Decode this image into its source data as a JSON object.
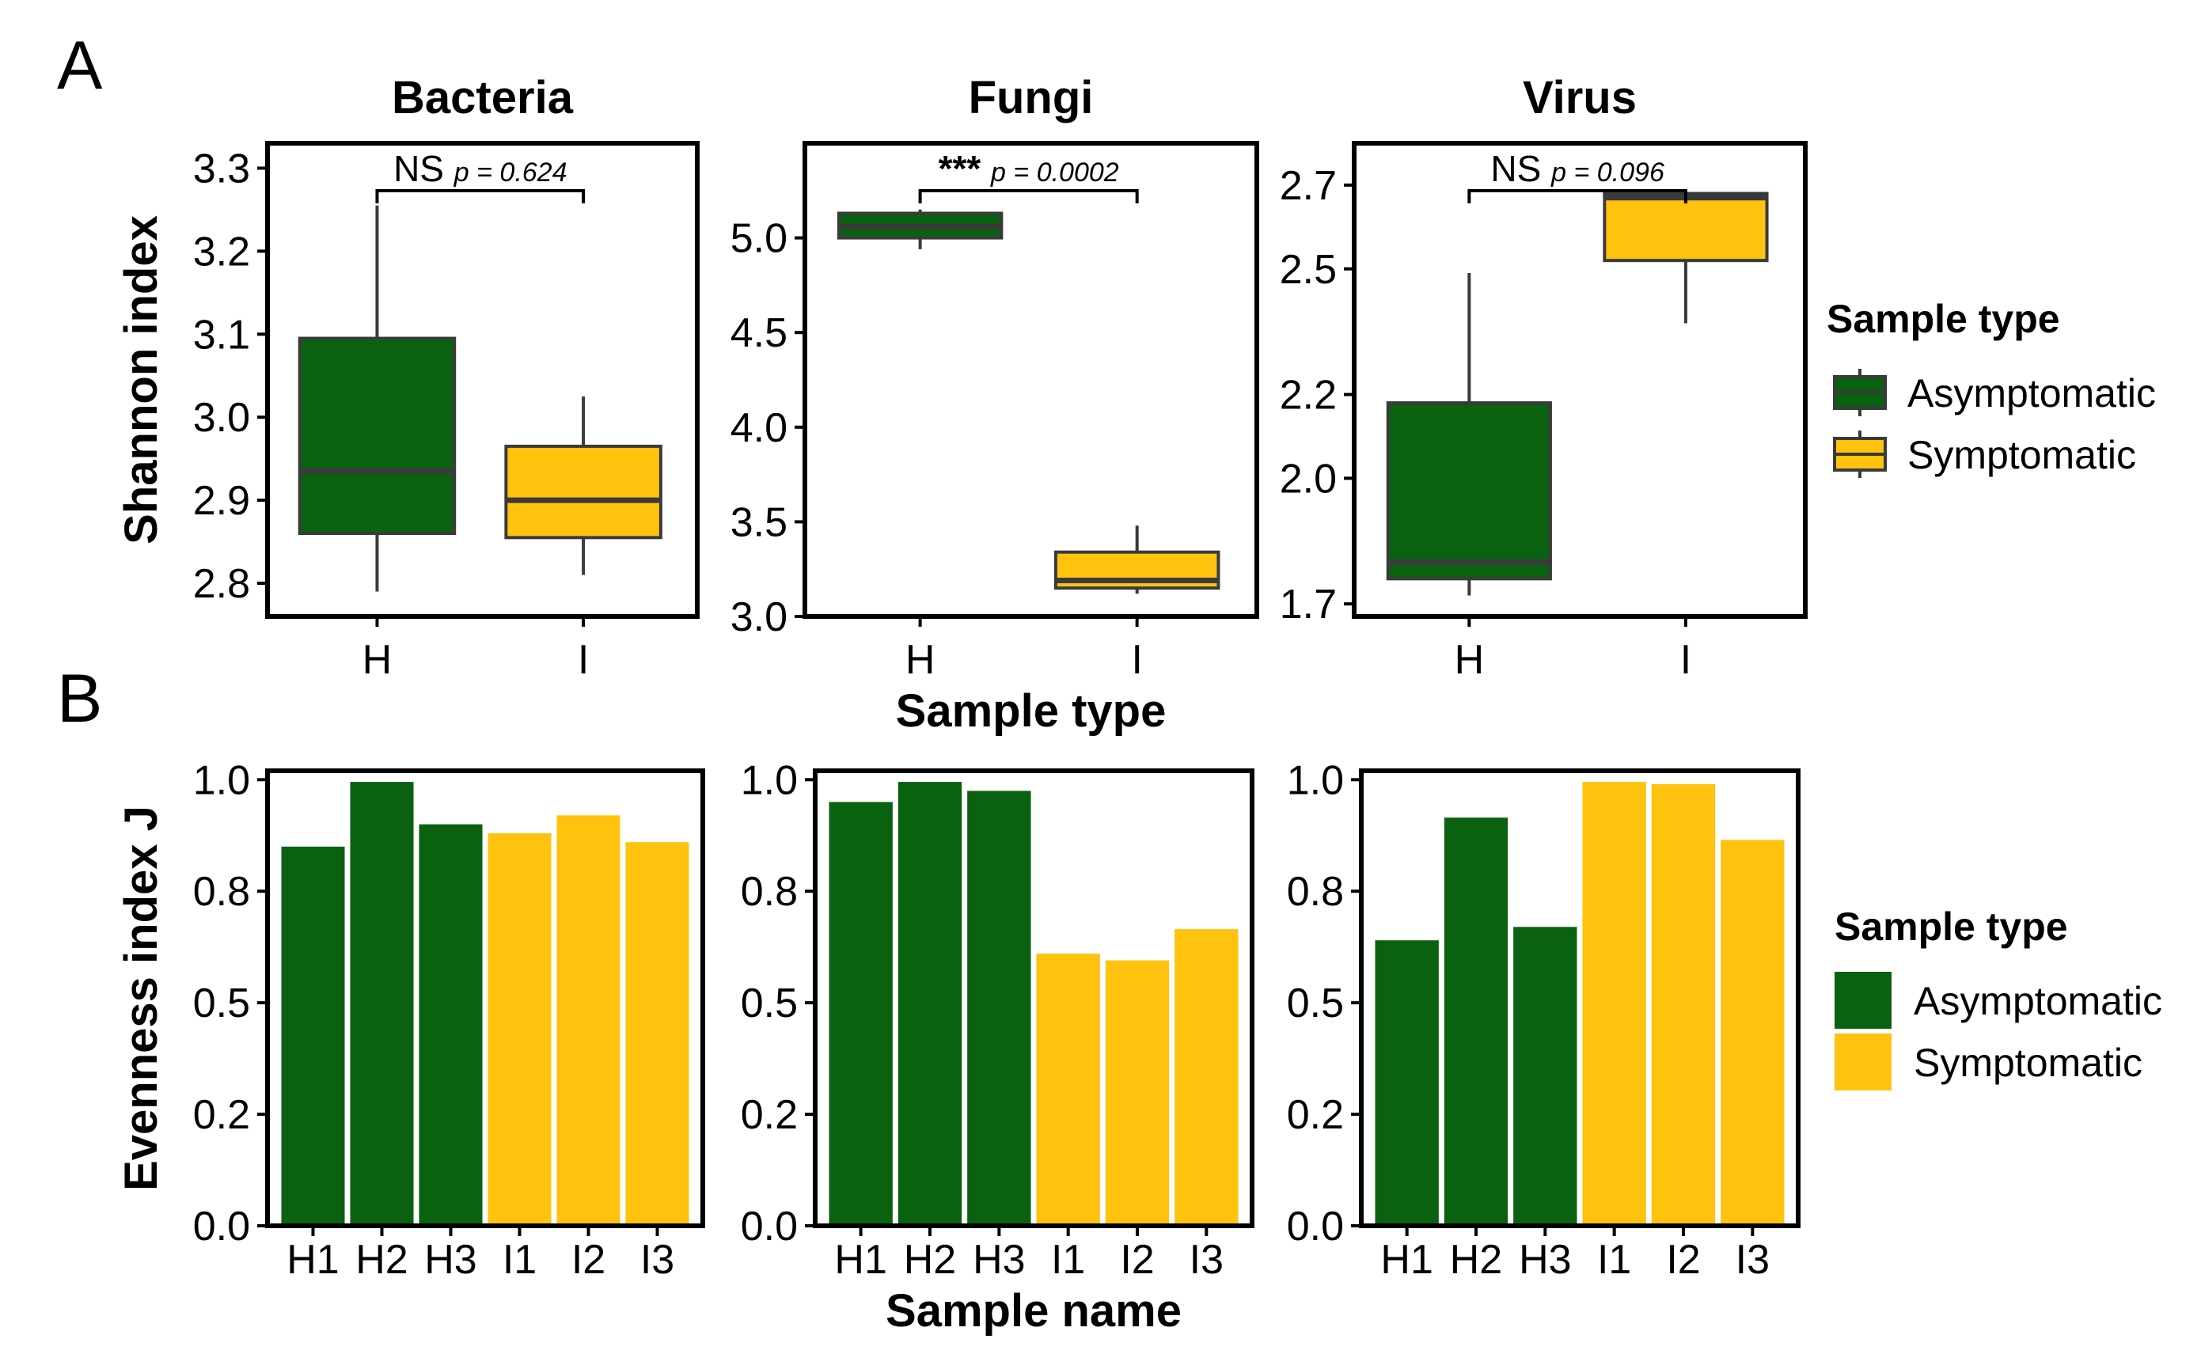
{
  "panels": {
    "a_letter": "A",
    "b_letter": "B"
  },
  "colors": {
    "asymptomatic": "#0a6110",
    "symptomatic": "#fec20f",
    "frame": "#000000",
    "box_edge": "#3a3a3a"
  },
  "chart_data": [
    {
      "type": "box",
      "title": "Bacteria",
      "ylabel": "Shannon index",
      "xlabel": "",
      "ylim": [
        2.76,
        3.33
      ],
      "yticks": [
        2.8,
        2.9,
        3.0,
        3.1,
        3.2,
        3.3
      ],
      "ytick_labels": [
        "2.8",
        "2.9",
        "3.0",
        "3.1",
        "3.2",
        "3.3"
      ],
      "categories": [
        "H",
        "I"
      ],
      "boxes": [
        {
          "group": "H",
          "sample_type": "Asymptomatic",
          "min": 2.79,
          "q1": 2.86,
          "median": 2.935,
          "q3": 3.095,
          "max": 3.255
        },
        {
          "group": "I",
          "sample_type": "Symptomatic",
          "min": 2.81,
          "q1": 2.855,
          "median": 2.9,
          "q3": 2.965,
          "max": 3.025
        }
      ],
      "significance": {
        "label": "NS",
        "p_text": "p = 0.624"
      }
    },
    {
      "type": "box",
      "title": "Fungi",
      "ylabel": "",
      "xlabel": "Sample type",
      "ylim": [
        3.0,
        5.5
      ],
      "yticks": [
        3.0,
        3.5,
        4.0,
        4.5,
        5.0
      ],
      "ytick_labels": [
        "3.0",
        "3.5",
        "4.0",
        "4.5",
        "5.0"
      ],
      "categories": [
        "H",
        "I"
      ],
      "boxes": [
        {
          "group": "H",
          "sample_type": "Asymptomatic",
          "min": 4.94,
          "q1": 5.0,
          "median": 5.06,
          "q3": 5.13,
          "max": 5.15
        },
        {
          "group": "I",
          "sample_type": "Symptomatic",
          "min": 3.12,
          "q1": 3.15,
          "median": 3.19,
          "q3": 3.34,
          "max": 3.48
        }
      ],
      "significance": {
        "label": "***",
        "p_text": "p = 0.0002"
      }
    },
    {
      "type": "box",
      "title": "Virus",
      "ylabel": "",
      "xlabel": "",
      "ylim": [
        1.67,
        2.8
      ],
      "yticks": [
        1.7,
        2.0,
        2.2,
        2.5,
        2.7
      ],
      "ytick_labels": [
        "1.7",
        "2.0",
        "2.2",
        "2.5",
        "2.7"
      ],
      "categories": [
        "H",
        "I"
      ],
      "boxes": [
        {
          "group": "H",
          "sample_type": "Asymptomatic",
          "min": 1.72,
          "q1": 1.76,
          "median": 1.8,
          "q3": 2.18,
          "max": 2.49
        },
        {
          "group": "I",
          "sample_type": "Symptomatic",
          "min": 2.37,
          "q1": 2.52,
          "median": 2.67,
          "q3": 2.68,
          "max": 2.68
        }
      ],
      "significance": {
        "label": "NS",
        "p_text": "p = 0.096"
      }
    },
    {
      "type": "bar",
      "title": "",
      "ylabel": "Evenness index J",
      "xlabel": "",
      "ylim": [
        0,
        1.02
      ],
      "yticks": [
        0,
        0.25,
        0.5,
        0.75,
        1.0
      ],
      "ytick_labels": [
        "0.0",
        "0.2",
        "0.5",
        "0.8",
        "1.0"
      ],
      "categories": [
        "H1",
        "H2",
        "H3",
        "I1",
        "I2",
        "I3"
      ],
      "values": [
        0.85,
        0.995,
        0.9,
        0.88,
        0.92,
        0.86
      ],
      "sample_type": [
        "Asymptomatic",
        "Asymptomatic",
        "Asymptomatic",
        "Symptomatic",
        "Symptomatic",
        "Symptomatic"
      ]
    },
    {
      "type": "bar",
      "title": "",
      "ylabel": "",
      "xlabel": "Sample name",
      "ylim": [
        0,
        1.02
      ],
      "yticks": [
        0,
        0.25,
        0.5,
        0.75,
        1.0
      ],
      "ytick_labels": [
        "0.0",
        "0.2",
        "0.5",
        "0.8",
        "1.0"
      ],
      "categories": [
        "H1",
        "H2",
        "H3",
        "I1",
        "I2",
        "I3"
      ],
      "values": [
        0.95,
        0.995,
        0.975,
        0.61,
        0.595,
        0.665
      ],
      "sample_type": [
        "Asymptomatic",
        "Asymptomatic",
        "Asymptomatic",
        "Symptomatic",
        "Symptomatic",
        "Symptomatic"
      ]
    },
    {
      "type": "bar",
      "title": "",
      "ylabel": "",
      "xlabel": "",
      "ylim": [
        0,
        1.02
      ],
      "yticks": [
        0,
        0.25,
        0.5,
        0.75,
        1.0
      ],
      "ytick_labels": [
        "0.0",
        "0.2",
        "0.5",
        "0.8",
        "1.0"
      ],
      "categories": [
        "H1",
        "H2",
        "H3",
        "I1",
        "I2",
        "I3"
      ],
      "values": [
        0.64,
        0.915,
        0.67,
        0.995,
        0.99,
        0.865
      ],
      "sample_type": [
        "Asymptomatic",
        "Asymptomatic",
        "Asymptomatic",
        "Symptomatic",
        "Symptomatic",
        "Symptomatic"
      ]
    }
  ],
  "legends": [
    {
      "title": "Sample type",
      "style": "box",
      "entries": [
        "Asymptomatic",
        "Symptomatic"
      ]
    },
    {
      "title": "Sample type",
      "style": "fill",
      "entries": [
        "Asymptomatic",
        "Symptomatic"
      ]
    }
  ]
}
